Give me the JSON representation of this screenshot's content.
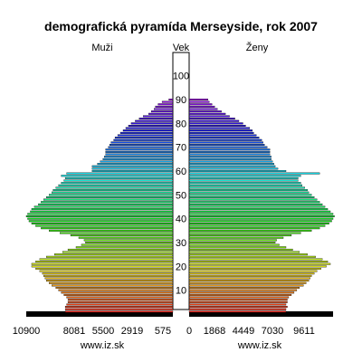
{
  "chart_data": {
    "type": "bar",
    "subtype": "population-pyramid",
    "title": "demografická pyramída Merseyside, rok 2007",
    "left_label": "Muži",
    "right_label": "Ženy",
    "center_label": "Vek",
    "x_ticks_left": [
      "10900",
      "8081",
      "5500",
      "2919",
      "575"
    ],
    "x_ticks_right": [
      "0",
      "1868",
      "4449",
      "7030",
      "9611"
    ],
    "age_ticks": [
      "10",
      "20",
      "30",
      "40",
      "50",
      "60",
      "70",
      "80",
      "90",
      "100"
    ],
    "footer_left": "www.iz.sk",
    "footer_right": "www.iz.sk",
    "max_value": 10900,
    "age_groups": [
      0,
      1,
      2,
      3,
      4,
      5,
      6,
      7,
      8,
      9,
      10,
      11,
      12,
      13,
      14,
      15,
      16,
      17,
      18,
      19,
      20,
      21,
      22,
      23,
      24,
      25,
      26,
      27,
      28,
      29,
      30,
      31,
      32,
      33,
      34,
      35,
      36,
      37,
      38,
      39,
      40,
      41,
      42,
      43,
      44,
      45,
      46,
      47,
      48,
      49,
      50,
      51,
      52,
      53,
      54,
      55,
      56,
      57,
      58,
      59,
      60,
      61,
      62,
      63,
      64,
      65,
      66,
      67,
      68,
      69,
      70,
      71,
      72,
      73,
      74,
      75,
      76,
      77,
      78,
      79,
      80,
      81,
      82,
      83,
      84,
      85,
      86,
      87,
      88,
      89,
      90
    ],
    "age_last_label": "90+",
    "males": [
      10900,
      8000,
      8000,
      8000,
      7900,
      7800,
      7800,
      7900,
      8100,
      8300,
      8500,
      8700,
      9000,
      9200,
      9400,
      9500,
      9600,
      9700,
      9900,
      10200,
      10500,
      10500,
      10200,
      9900,
      9400,
      8800,
      8200,
      7800,
      7200,
      6800,
      6500,
      6600,
      7000,
      7600,
      8400,
      9200,
      9800,
      10200,
      10500,
      10700,
      10800,
      10900,
      10800,
      10600,
      10500,
      10300,
      10000,
      9800,
      9600,
      9400,
      9200,
      9000,
      8900,
      8700,
      8500,
      8300,
      8100,
      8000,
      8300,
      7900,
      6000,
      6000,
      6000,
      5600,
      5400,
      5200,
      5100,
      5000,
      5000,
      5000,
      4800,
      4700,
      4600,
      4400,
      4300,
      4100,
      3900,
      3700,
      3500,
      3300,
      3100,
      2800,
      2500,
      2200,
      1800,
      1600,
      1400,
      1300,
      1100,
      800,
      300
    ],
    "females": [
      10700,
      7200,
      7200,
      7300,
      7200,
      7300,
      7300,
      7400,
      7600,
      7800,
      8000,
      8200,
      8500,
      8700,
      8900,
      9000,
      9100,
      9300,
      9500,
      9800,
      10200,
      10500,
      10300,
      9900,
      9400,
      8800,
      8200,
      7700,
      7200,
      6700,
      6400,
      6500,
      7000,
      7600,
      8300,
      9100,
      9700,
      10100,
      10400,
      10600,
      10700,
      10800,
      10700,
      10500,
      10300,
      10100,
      9900,
      9700,
      9500,
      9300,
      9100,
      8900,
      8800,
      8600,
      8400,
      8300,
      8100,
      8100,
      8300,
      9700,
      7200,
      6600,
      6400,
      6300,
      6200,
      6100,
      6100,
      6000,
      6000,
      6000,
      5800,
      5600,
      5500,
      5400,
      5200,
      5000,
      4800,
      4700,
      4500,
      4200,
      4000,
      3700,
      3400,
      3000,
      2700,
      2400,
      2100,
      1900,
      1700,
      1500,
      1400
    ],
    "colors": {
      "hue_start_deg": 0,
      "hue_end_deg": 280,
      "saturation": "85%",
      "lightness": "48%",
      "first_row": "#000000"
    }
  }
}
